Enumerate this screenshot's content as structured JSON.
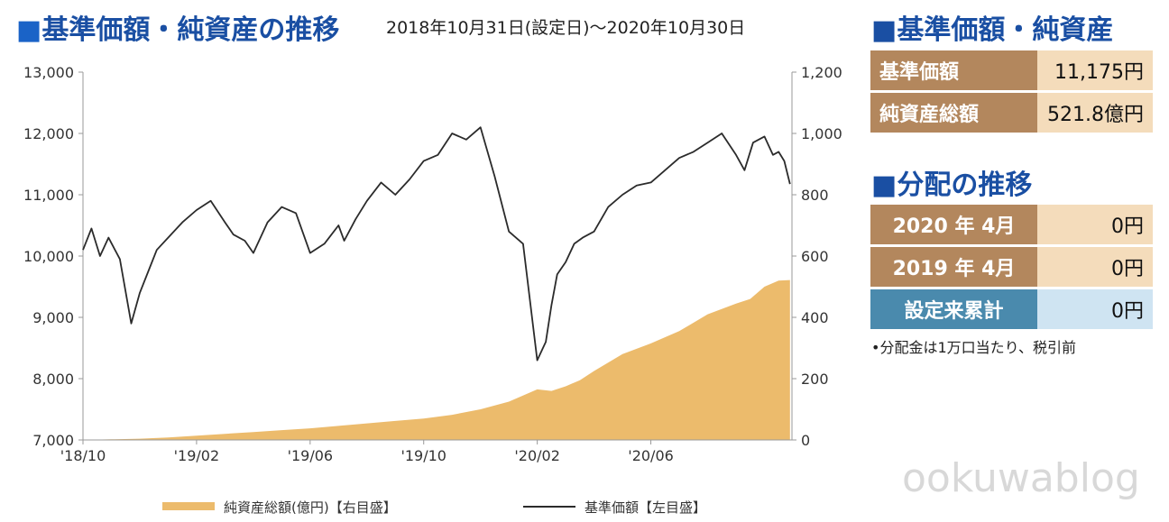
{
  "header": {
    "title_square": "■",
    "title": "基準価額・純資産の推移",
    "period": "2018年10月31日(設定日)～2020年10月30日"
  },
  "side": {
    "nav_title": "■基準価額・純資産",
    "rows": [
      {
        "label": "基準価額",
        "value": "11,175円"
      },
      {
        "label": "純資産総額",
        "value": "521.8億円"
      }
    ],
    "dist_title": "■分配の推移",
    "dist_rows": [
      {
        "label": "2020 年  4月",
        "value": "0円"
      },
      {
        "label": "2019 年  4月",
        "value": "0円"
      }
    ],
    "cumulative": {
      "label": "設定来累計",
      "value": "0円"
    },
    "note": "•分配金は1万口当たり、税引前"
  },
  "watermark": "ookuwablog",
  "colors": {
    "nav_line": "#2b2b2b",
    "assets_fill": "#ecbb6c",
    "title_blue": "#1a4fa3"
  },
  "chart_data": {
    "type": "line+area",
    "x_labels": [
      "'18/10",
      "'19/02",
      "'19/06",
      "'19/10",
      "'20/02",
      "'20/06"
    ],
    "x_label_index": [
      0,
      4,
      8,
      12,
      16,
      20
    ],
    "x_count": 24.97,
    "y_left": {
      "ticks": [
        "13,000",
        "12,000",
        "11,000",
        "10,000",
        "9,000",
        "8,000",
        "7,000"
      ],
      "range": [
        7000,
        13000
      ]
    },
    "y_right": {
      "ticks": [
        "1,200",
        "1,000",
        "800",
        "600",
        "400",
        "200",
        "0"
      ],
      "range": [
        0,
        1200
      ]
    },
    "series": [
      {
        "name": "基準価額【左目盛】",
        "axis": "left",
        "type": "line",
        "x": [
          0,
          0.3,
          0.6,
          0.9,
          1.3,
          1.7,
          2.0,
          2.3,
          2.6,
          3.0,
          3.5,
          4.0,
          4.5,
          5.0,
          5.3,
          5.7,
          6.0,
          6.5,
          7.0,
          7.5,
          8.0,
          8.5,
          9.0,
          9.2,
          9.6,
          10.0,
          10.5,
          11.0,
          11.5,
          12.0,
          12.5,
          13.0,
          13.5,
          14.0,
          14.5,
          15.0,
          15.5,
          16.0,
          16.3,
          16.5,
          16.7,
          17.0,
          17.3,
          17.6,
          18.0,
          18.5,
          19.0,
          19.5,
          20.0,
          20.5,
          21.0,
          21.5,
          22.0,
          22.5,
          23.0,
          23.3,
          23.6,
          24.0,
          24.3,
          24.5,
          24.7,
          24.9
        ],
        "values": [
          10100,
          10450,
          10000,
          10300,
          9950,
          8900,
          9400,
          9750,
          10100,
          10300,
          10550,
          10750,
          10900,
          10550,
          10350,
          10250,
          10050,
          10550,
          10800,
          10700,
          10050,
          10200,
          10500,
          10250,
          10600,
          10900,
          11200,
          11000,
          11250,
          11550,
          11650,
          12000,
          11900,
          12100,
          11300,
          10400,
          10200,
          8300,
          8600,
          9200,
          9700,
          9900,
          10200,
          10300,
          10400,
          10800,
          11000,
          11150,
          11200,
          11400,
          11600,
          11700,
          11850,
          12000,
          11650,
          11400,
          11850,
          11950,
          11650,
          11700,
          11550,
          11175
        ]
      },
      {
        "name": "純資産総額(億円)【右目盛】",
        "axis": "right",
        "type": "area",
        "x": [
          0,
          1,
          2,
          3,
          4,
          5,
          6,
          7,
          8,
          9,
          10,
          11,
          12,
          13,
          14,
          15,
          16,
          16.5,
          17,
          17.5,
          18,
          19,
          20,
          21,
          22,
          23,
          23.5,
          24,
          24.5,
          24.9
        ],
        "values": [
          0,
          2,
          4,
          8,
          14,
          20,
          26,
          32,
          38,
          46,
          54,
          62,
          70,
          82,
          100,
          125,
          165,
          160,
          175,
          195,
          225,
          280,
          315,
          355,
          410,
          445,
          460,
          500,
          520,
          521.8
        ]
      }
    ],
    "legend": [
      {
        "label": "純資産総額(億円)【右目盛】",
        "kind": "area"
      },
      {
        "label": "基準価額【左目盛】",
        "kind": "line"
      }
    ],
    "legend_position": "bottom",
    "grid": false
  }
}
